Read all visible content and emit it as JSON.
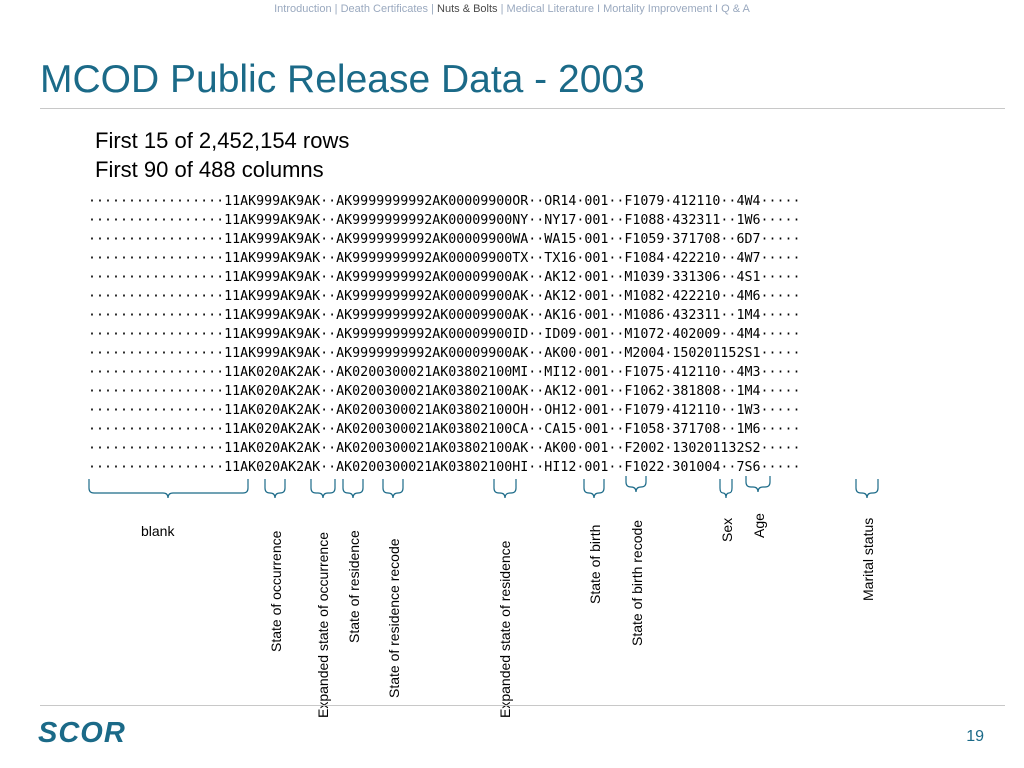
{
  "nav": {
    "introduction": "Introduction",
    "sep1": " | ",
    "death_certificates": "Death Certificates",
    "sep2": " | ",
    "nuts_bolts": "Nuts & Bolts",
    "sep3": " | ",
    "medical_literature": "Medical Literature",
    "sep4": " I ",
    "mortality_improvement": "Mortality Improvement",
    "sep5": " I ",
    "qa": "Q & A"
  },
  "title": "MCOD Public Release Data - 2003",
  "subtitle_rows": "First 15 of 2,452,154 rows",
  "subtitle_cols": "First 90 of 488 columns",
  "data_text": "·················11AK999AK9AK··AK9999999992AK00009900OR··OR14·001··F1079·412110··4W4·····\n·················11AK999AK9AK··AK9999999992AK00009900NY··NY17·001··F1088·432311··1W6·····\n·················11AK999AK9AK··AK9999999992AK00009900WA··WA15·001··F1059·371708··6D7·····\n·················11AK999AK9AK··AK9999999992AK00009900TX··TX16·001··F1084·422210··4W7·····\n·················11AK999AK9AK··AK9999999992AK00009900AK··AK12·001··M1039·331306··4S1·····\n·················11AK999AK9AK··AK9999999992AK00009900AK··AK12·001··M1082·422210··4M6·····\n·················11AK999AK9AK··AK9999999992AK00009900AK··AK16·001··M1086·432311··1M4·····\n·················11AK999AK9AK··AK9999999992AK00009900ID··ID09·001··M1072·402009··4M4·····\n·················11AK999AK9AK··AK9999999992AK00009900AK··AK00·001··M2004·150201152S1·····\n·················11AK020AK2AK··AK0200300021AK03802100MI··MI12·001··F1075·412110··4M3·····\n·················11AK020AK2AK··AK0200300021AK03802100AK··AK12·001··F1062·381808··1M4·····\n·················11AK020AK2AK··AK0200300021AK03802100OH··OH12·001··F1079·412110··1W3·····\n·················11AK020AK2AK··AK0200300021AK03802100CA··CA15·001··F1058·371708··1M6·····\n·················11AK020AK2AK··AK0200300021AK03802100AK··AK00·001··F2002·130201132S2·····\n·················11AK020AK2AK··AK0200300021AK03802100HI··HI12·001··F1022·301004··7S6·····",
  "labels": {
    "blank": "blank",
    "state_occurrence": "State of occurrence",
    "expanded_state_occurrence": "Expanded state of occurrence",
    "state_residence": "State of residence",
    "state_residence_recode": "State of residence recode",
    "expanded_state_residence": "Expanded state of residence",
    "state_birth": "State of birth",
    "state_birth_recode": "State of birth recode",
    "sex": "Sex",
    "age": "Age",
    "marital_status": "Marital status"
  },
  "logo_text": "SCOR",
  "page_number": "19",
  "colors": {
    "title": "#1b6a88",
    "nav": "#9aa9bf",
    "logo": "#1b6a88"
  }
}
